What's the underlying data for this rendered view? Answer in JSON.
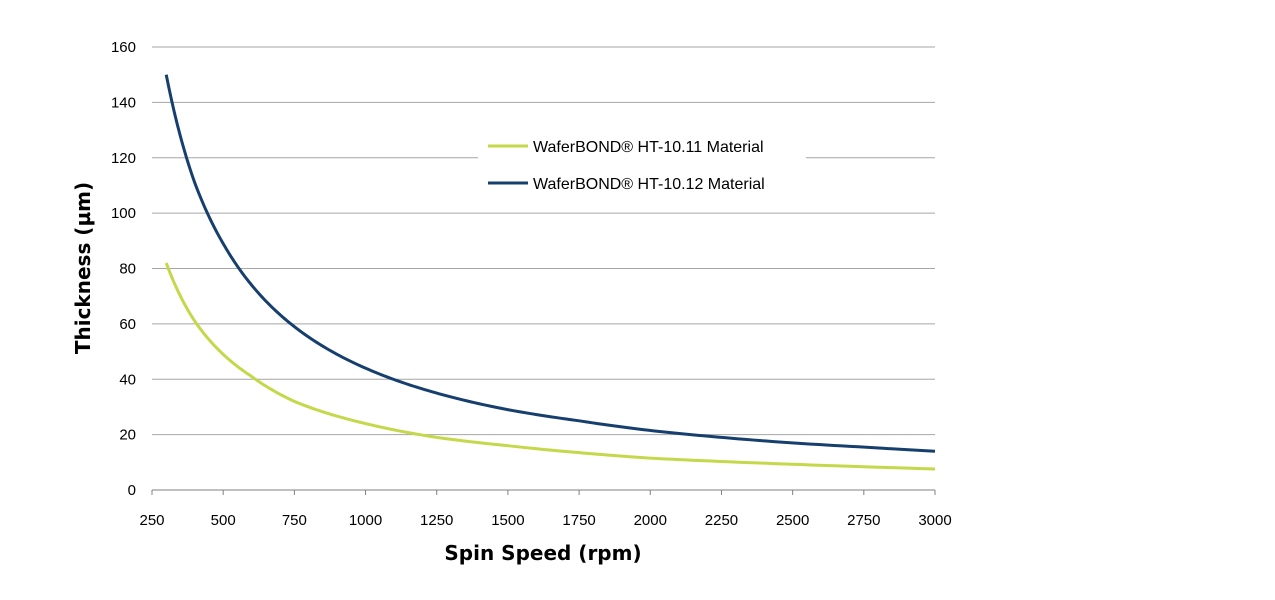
{
  "chart_data": {
    "type": "line",
    "title": "",
    "xlabel": "Spin Speed (rpm)",
    "ylabel": "Thickness (µm)",
    "xlim": [
      250,
      3000
    ],
    "ylim": [
      0,
      160
    ],
    "xticks": [
      250,
      500,
      750,
      1000,
      1250,
      1500,
      1750,
      2000,
      2250,
      2500,
      2750,
      3000
    ],
    "yticks": [
      0,
      20,
      40,
      60,
      80,
      100,
      120,
      140,
      160
    ],
    "grid": "horizontal",
    "legend_position": "top-center",
    "series": [
      {
        "name": "WaferBOND® HT-10.11 Material",
        "color": "#c4d84a",
        "x": [
          300,
          400,
          500,
          600,
          750,
          1000,
          1250,
          1500,
          1750,
          2000,
          2250,
          2500,
          2750,
          3000
        ],
        "y": [
          82,
          61,
          49,
          41,
          32,
          24,
          19,
          16,
          13.5,
          11.5,
          10.3,
          9.3,
          8.4,
          7.6
        ]
      },
      {
        "name": "WaferBOND® HT-10.12 Material",
        "color": "#173f6e",
        "x": [
          300,
          400,
          500,
          600,
          750,
          1000,
          1250,
          1500,
          1750,
          2000,
          2250,
          2500,
          2750,
          3000
        ],
        "y": [
          150,
          111,
          89,
          74,
          59,
          44,
          35,
          29,
          25,
          21.5,
          19,
          17,
          15.5,
          14
        ]
      }
    ]
  }
}
